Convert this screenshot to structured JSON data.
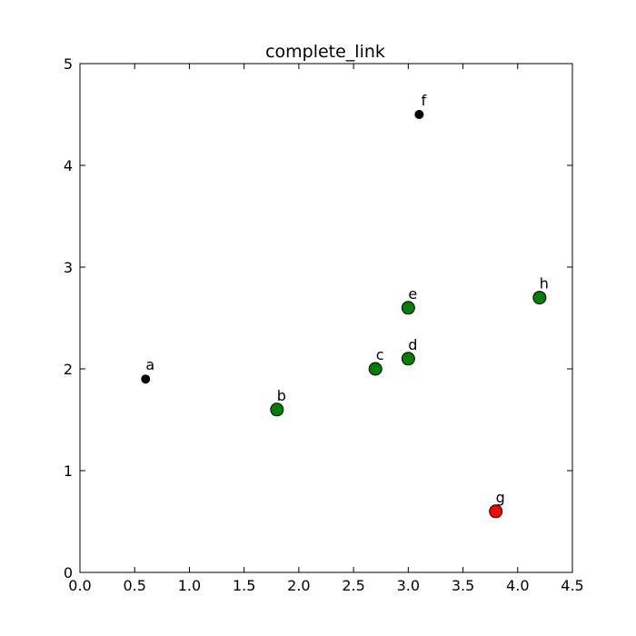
{
  "chart_data": {
    "type": "scatter",
    "title": "complete_link",
    "xlabel": "",
    "ylabel": "",
    "xlim": [
      0,
      4.5
    ],
    "ylim": [
      0,
      5
    ],
    "grid": false,
    "x_ticks": [
      "0.0",
      "0.5",
      "1.0",
      "1.5",
      "2.0",
      "2.5",
      "3.0",
      "3.5",
      "4.0",
      "4.5"
    ],
    "y_ticks": [
      "0",
      "1",
      "2",
      "3",
      "4",
      "5"
    ],
    "points": [
      {
        "label": "a",
        "x": 0.6,
        "y": 1.9,
        "color": "#000000",
        "marker": "small"
      },
      {
        "label": "b",
        "x": 1.8,
        "y": 1.6,
        "color": "#008000",
        "marker": "large"
      },
      {
        "label": "c",
        "x": 2.7,
        "y": 2.0,
        "color": "#008000",
        "marker": "large"
      },
      {
        "label": "d",
        "x": 3.0,
        "y": 2.1,
        "color": "#008000",
        "marker": "large"
      },
      {
        "label": "e",
        "x": 3.0,
        "y": 2.6,
        "color": "#008000",
        "marker": "large"
      },
      {
        "label": "f",
        "x": 3.1,
        "y": 4.5,
        "color": "#000000",
        "marker": "small"
      },
      {
        "label": "g",
        "x": 3.8,
        "y": 0.6,
        "color": "#ff0000",
        "marker": "large"
      },
      {
        "label": "h",
        "x": 4.2,
        "y": 2.7,
        "color": "#008000",
        "marker": "large"
      }
    ]
  }
}
